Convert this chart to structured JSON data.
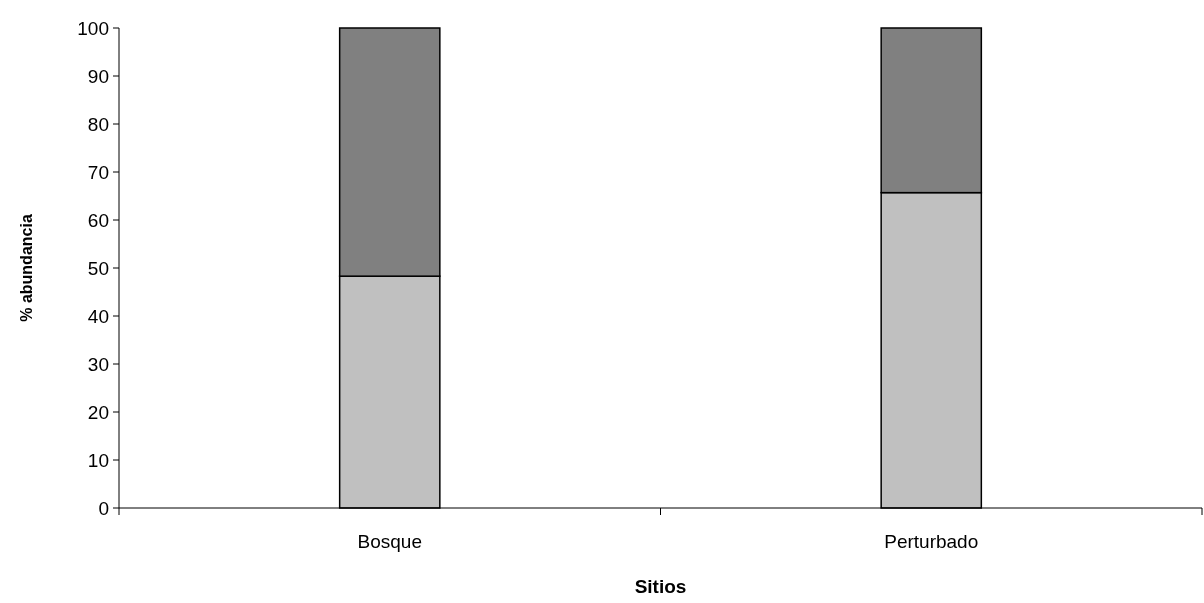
{
  "chart_data": {
    "type": "bar",
    "stacked": true,
    "xlabel": "Sitios",
    "ylabel": "% abundancia",
    "categories": [
      "Bosque",
      "Perturbado"
    ],
    "series": [
      {
        "color": "#c0c0c0",
        "values": [
          48.3,
          65.7
        ]
      },
      {
        "color": "#808080",
        "values": [
          51.7,
          34.3
        ]
      }
    ],
    "ylim": [
      0,
      100
    ],
    "yticks": [
      0,
      10,
      20,
      30,
      40,
      50,
      60,
      70,
      80,
      90,
      100
    ],
    "grid": false
  }
}
